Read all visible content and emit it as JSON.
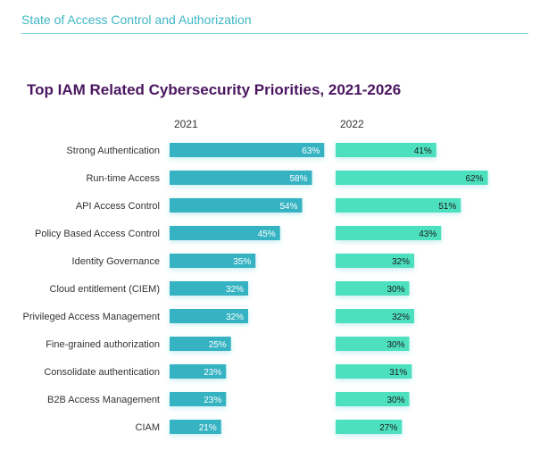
{
  "header": {
    "section_title": "State of Access Control and Authorization"
  },
  "colors": {
    "accent": "#3fb6c6",
    "title": "#4b1660",
    "series_2021": "#35b3c2",
    "series_2022": "#4de0bf"
  },
  "chart_data": {
    "type": "bar",
    "orientation": "horizontal",
    "title": "Top IAM Related Cybersecurity Priorities, 2021-2026",
    "categories": [
      "Strong Authentication",
      "Run-time Access",
      "API Access Control",
      "Policy Based Access Control",
      "Identity Governance",
      "Cloud entitlement (CIEM)",
      "Privileged Access Management",
      "Fine-grained authorization",
      "Consolidate authentication",
      "B2B Access Management",
      "CIAM"
    ],
    "series": [
      {
        "name": "2021",
        "values": [
          63,
          58,
          54,
          45,
          35,
          32,
          32,
          25,
          23,
          23,
          21
        ]
      },
      {
        "name": "2022",
        "values": [
          41,
          62,
          51,
          43,
          32,
          30,
          32,
          30,
          31,
          30,
          27
        ]
      }
    ],
    "value_suffix": "%",
    "xlim": [
      0,
      100
    ],
    "grid": false,
    "legend": "none"
  }
}
